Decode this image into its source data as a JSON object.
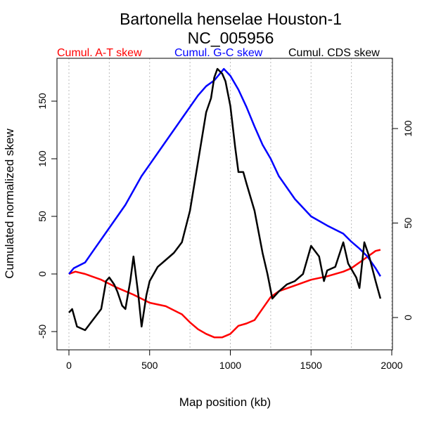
{
  "chart_data": {
    "type": "line",
    "title": "Bartonella henselae Houston-1",
    "subtitle": "NC_005956",
    "xlabel": "Map position (kb)",
    "ylabel": "Cumulated normalized skew",
    "xlim": [
      -80,
      2000
    ],
    "ylim_left": [
      -66,
      187
    ],
    "ylim_right": [
      -17,
      137
    ],
    "x_ticks": [
      0,
      500,
      1000,
      1500,
      2000
    ],
    "y_ticks_left": [
      -50,
      0,
      50,
      100,
      150
    ],
    "y_ticks_right": [
      0,
      50,
      100
    ],
    "vertical_grid": [
      0,
      250,
      500,
      750,
      1000,
      1250,
      1500,
      1750,
      2000
    ],
    "legend": [
      "Cumul. A-T skew",
      "Cumul. G-C skew",
      "Cumul. CDS skew"
    ],
    "legend_placement": "top",
    "series": [
      {
        "name": "Cumul. A-T skew",
        "color": "#ff0000",
        "axis": "left",
        "x": [
          0,
          40,
          100,
          200,
          300,
          400,
          500,
          600,
          700,
          750,
          800,
          850,
          900,
          950,
          1000,
          1050,
          1100,
          1150,
          1200,
          1250,
          1300,
          1400,
          1500,
          1600,
          1700,
          1750,
          1800,
          1850,
          1900,
          1930
        ],
        "y": [
          0,
          2,
          0,
          -5,
          -12,
          -18,
          -25,
          -28,
          -35,
          -42,
          -48,
          -52,
          -55,
          -55,
          -52,
          -45,
          -43,
          -40,
          -30,
          -20,
          -15,
          -10,
          -5,
          -2,
          2,
          5,
          10,
          15,
          20,
          21
        ]
      },
      {
        "name": "Cumul. G-C skew",
        "color": "#0000ff",
        "axis": "left",
        "x": [
          0,
          30,
          100,
          150,
          250,
          350,
          450,
          500,
          600,
          700,
          800,
          850,
          900,
          960,
          1000,
          1050,
          1100,
          1150,
          1200,
          1250,
          1300,
          1400,
          1500,
          1600,
          1700,
          1750,
          1800,
          1850,
          1900,
          1930
        ],
        "y": [
          0,
          5,
          10,
          20,
          40,
          60,
          85,
          95,
          115,
          135,
          155,
          163,
          168,
          178,
          172,
          160,
          145,
          128,
          112,
          100,
          85,
          65,
          50,
          42,
          35,
          28,
          22,
          15,
          5,
          -2
        ]
      },
      {
        "name": "Cumul. CDS skew",
        "color": "#000000",
        "axis": "right",
        "x": [
          0,
          20,
          50,
          100,
          150,
          200,
          230,
          250,
          280,
          300,
          330,
          350,
          380,
          400,
          430,
          450,
          480,
          500,
          550,
          600,
          650,
          700,
          750,
          800,
          850,
          880,
          900,
          920,
          950,
          970,
          1000,
          1030,
          1050,
          1080,
          1100,
          1150,
          1200,
          1230,
          1260,
          1300,
          1350,
          1400,
          1450,
          1500,
          1550,
          1580,
          1600,
          1650,
          1700,
          1730,
          1780,
          1800,
          1830,
          1860,
          1900,
          1930
        ],
        "y": [
          2.6,
          4.5,
          -4.8,
          -6.7,
          -1.1,
          4.5,
          19.3,
          21.2,
          17.5,
          13.8,
          6.3,
          4.5,
          19.3,
          32.3,
          11.9,
          -4.8,
          11.9,
          19.3,
          26.8,
          30.5,
          34.2,
          39.8,
          56.5,
          82.5,
          108.6,
          116,
          127,
          131.6,
          129,
          125,
          112,
          90,
          77,
          77,
          71,
          56.5,
          34,
          23,
          10,
          13.8,
          17.5,
          19.3,
          23,
          37.9,
          32.3,
          19.3,
          24.9,
          26.8,
          39.8,
          28.6,
          21.2,
          15.6,
          39.8,
          32.3,
          19.3,
          10
        ]
      }
    ]
  }
}
